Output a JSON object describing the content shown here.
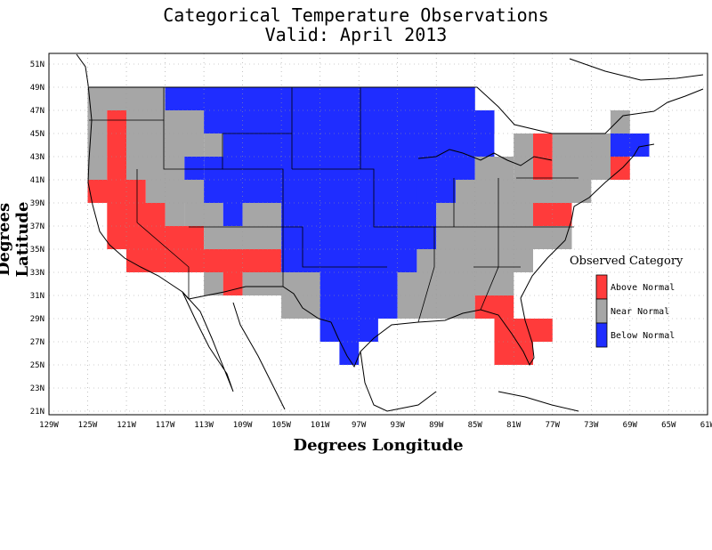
{
  "title_line1": "Categorical Temperature Observations",
  "title_line2": "Valid: April 2013",
  "x_axis_title": "Degrees Longitude",
  "y_axis_title": "Degrees Latitude",
  "x_ticks": [
    "129W",
    "125W",
    "121W",
    "117W",
    "113W",
    "109W",
    "105W",
    "101W",
    "97W",
    "93W",
    "89W",
    "85W",
    "81W",
    "77W",
    "73W",
    "69W",
    "65W",
    "61W"
  ],
  "y_ticks": [
    "51N",
    "49N",
    "47N",
    "45N",
    "43N",
    "41N",
    "39N",
    "37N",
    "35N",
    "33N",
    "31N",
    "29N",
    "27N",
    "25N",
    "23N",
    "21N"
  ],
  "legend": {
    "title": "Observed Category",
    "items": [
      {
        "label": "Above Normal",
        "color": "#ff3b3b"
      },
      {
        "label": "Near Normal",
        "color": "#a6a6a6"
      },
      {
        "label": "Below Normal",
        "color": "#1f2dff"
      }
    ]
  },
  "colors": {
    "above": "#ff3b3b",
    "near": "#a6a6a6",
    "below": "#1f2dff"
  },
  "chart_data": {
    "type": "heatmap",
    "xlim": [
      -129,
      -61
    ],
    "ylim": [
      21,
      52
    ],
    "cell_size_deg": 2,
    "categories": [
      "Above Normal",
      "Near Normal",
      "Below Normal"
    ],
    "rows": [
      {
        "lat": [
          47,
          49
        ],
        "cells": [
          [
            -125,
            -117,
            "near"
          ],
          [
            -117,
            -85,
            "below"
          ]
        ]
      },
      {
        "lat": [
          45,
          47
        ],
        "cells": [
          [
            -125,
            -123,
            "near"
          ],
          [
            -123,
            -121,
            "above"
          ],
          [
            -121,
            -113,
            "near"
          ],
          [
            -113,
            -83,
            "below"
          ],
          [
            -71,
            -69,
            "near"
          ]
        ]
      },
      {
        "lat": [
          43,
          45
        ],
        "cells": [
          [
            -125,
            -123,
            "near"
          ],
          [
            -123,
            -121,
            "above"
          ],
          [
            -121,
            -113,
            "near"
          ],
          [
            -113,
            -111,
            "near"
          ],
          [
            -111,
            -83,
            "below"
          ],
          [
            -81,
            -79,
            "near"
          ],
          [
            -79,
            -77,
            "above"
          ],
          [
            -77,
            -71,
            "near"
          ],
          [
            -71,
            -67,
            "below"
          ]
        ]
      },
      {
        "lat": [
          41,
          43
        ],
        "cells": [
          [
            -125,
            -123,
            "near"
          ],
          [
            -123,
            -121,
            "above"
          ],
          [
            -121,
            -115,
            "near"
          ],
          [
            -115,
            -113,
            "below"
          ],
          [
            -113,
            -85,
            "below"
          ],
          [
            -85,
            -81,
            "near"
          ],
          [
            -81,
            -79,
            "near"
          ],
          [
            -79,
            -77,
            "above"
          ],
          [
            -77,
            -71,
            "near"
          ],
          [
            -71,
            -69,
            "above"
          ]
        ]
      },
      {
        "lat": [
          39,
          41
        ],
        "cells": [
          [
            -125,
            -119,
            "above"
          ],
          [
            -119,
            -113,
            "near"
          ],
          [
            -113,
            -91,
            "below"
          ],
          [
            -91,
            -87,
            "below"
          ],
          [
            -87,
            -73,
            "near"
          ]
        ]
      },
      {
        "lat": [
          37,
          39
        ],
        "cells": [
          [
            -123,
            -117,
            "above"
          ],
          [
            -117,
            -115,
            "near"
          ],
          [
            -115,
            -111,
            "near"
          ],
          [
            -111,
            -109,
            "below"
          ],
          [
            -109,
            -105,
            "near"
          ],
          [
            -105,
            -89,
            "below"
          ],
          [
            -89,
            -79,
            "near"
          ],
          [
            -79,
            -75,
            "above"
          ]
        ]
      },
      {
        "lat": [
          35,
          37
        ],
        "cells": [
          [
            -123,
            -113,
            "above"
          ],
          [
            -113,
            -105,
            "near"
          ],
          [
            -105,
            -89,
            "below"
          ],
          [
            -89,
            -75,
            "near"
          ]
        ]
      },
      {
        "lat": [
          33,
          35
        ],
        "cells": [
          [
            -121,
            -105,
            "above"
          ],
          [
            -105,
            -91,
            "below"
          ],
          [
            -91,
            -79,
            "near"
          ]
        ]
      },
      {
        "lat": [
          31,
          33
        ],
        "cells": [
          [
            -113,
            -111,
            "near"
          ],
          [
            -111,
            -109,
            "above"
          ],
          [
            -109,
            -101,
            "near"
          ],
          [
            -101,
            -93,
            "below"
          ],
          [
            -93,
            -81,
            "near"
          ]
        ]
      },
      {
        "lat": [
          29,
          31
        ],
        "cells": [
          [
            -105,
            -101,
            "near"
          ],
          [
            -101,
            -93,
            "below"
          ],
          [
            -93,
            -85,
            "near"
          ],
          [
            -85,
            -81,
            "above"
          ]
        ]
      },
      {
        "lat": [
          27,
          29
        ],
        "cells": [
          [
            -101,
            -95,
            "below"
          ],
          [
            -83,
            -77,
            "above"
          ]
        ]
      },
      {
        "lat": [
          25,
          27
        ],
        "cells": [
          [
            -99,
            -97,
            "below"
          ],
          [
            -83,
            -79,
            "above"
          ]
        ]
      }
    ]
  }
}
